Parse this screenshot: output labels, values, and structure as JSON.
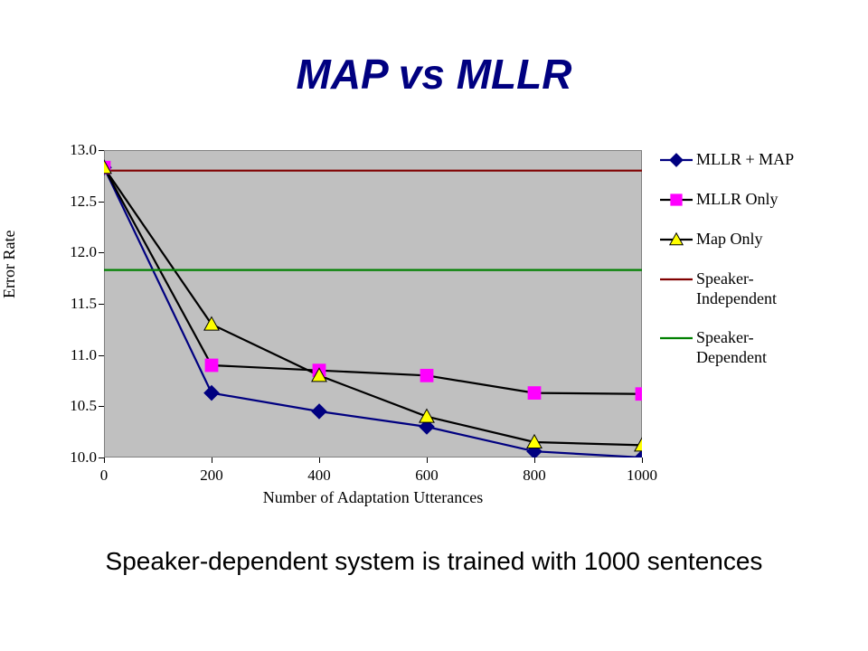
{
  "slide": {
    "title": "MAP vs MLLR",
    "title_color": "#000080",
    "title_fontsize": 46,
    "caption": "Speaker-dependent system is trained with 1000 sentences",
    "caption_fontsize": 28
  },
  "chart": {
    "type": "line",
    "plot_bg": "#c0c0c0",
    "outer_bg": "#ffffff",
    "border_color": "#808080",
    "axis_line_color": "#000000",
    "xlabel": "Number of Adaptation Utterances",
    "ylabel": "Error Rate",
    "label_fontsize": 18,
    "tick_fontsize": 17,
    "xlim": [
      0,
      1000
    ],
    "xtick_step": 200,
    "xticks": [
      0,
      200,
      400,
      600,
      800,
      1000
    ],
    "ylim": [
      10.0,
      13.0
    ],
    "ytick_step": 0.5,
    "yticks": [
      10.0,
      10.5,
      11.0,
      11.5,
      12.0,
      12.5,
      13.0
    ],
    "ytick_labels": [
      "10.0",
      "10.5",
      "11.0",
      "11.5",
      "12.0",
      "12.5",
      "13.0"
    ],
    "line_width": 2.2,
    "marker_size": 9,
    "series": [
      {
        "name": "MLLR + MAP",
        "line_color": "#000080",
        "marker": "diamond",
        "marker_fill": "#000080",
        "marker_stroke": "#000080",
        "x": [
          0,
          200,
          400,
          600,
          800,
          1000
        ],
        "y": [
          12.83,
          10.63,
          10.45,
          10.3,
          10.06,
          10.0
        ]
      },
      {
        "name": "MLLR Only",
        "line_color": "#000000",
        "marker": "square",
        "marker_fill": "#ff00ff",
        "marker_stroke": "#ff00ff",
        "x": [
          0,
          200,
          400,
          600,
          800,
          1000
        ],
        "y": [
          12.83,
          10.9,
          10.85,
          10.8,
          10.63,
          10.62
        ]
      },
      {
        "name": "Map Only",
        "line_color": "#000000",
        "marker": "triangle",
        "marker_fill": "#ffff00",
        "marker_stroke": "#000000",
        "x": [
          0,
          200,
          400,
          600,
          800,
          1000
        ],
        "y": [
          12.83,
          11.3,
          10.8,
          10.4,
          10.15,
          10.12
        ]
      },
      {
        "name": "Speaker-Independent",
        "line_color": "#800000",
        "marker": "none",
        "x": [
          0,
          1000
        ],
        "y": [
          12.8,
          12.8
        ]
      },
      {
        "name": "Speaker-Dependent",
        "line_color": "#008000",
        "marker": "none",
        "x": [
          0,
          1000
        ],
        "y": [
          11.83,
          11.83
        ]
      }
    ],
    "legend": {
      "position": "right",
      "fontsize": 18,
      "swatch_line_len": 36,
      "items": [
        {
          "series_index": 0,
          "label": "MLLR + MAP"
        },
        {
          "series_index": 1,
          "label": "MLLR Only"
        },
        {
          "series_index": 2,
          "label": "Map Only"
        },
        {
          "series_index": 3,
          "label": "Speaker-\nIndependent"
        },
        {
          "series_index": 4,
          "label": "Speaker-\nDependent"
        }
      ]
    }
  }
}
